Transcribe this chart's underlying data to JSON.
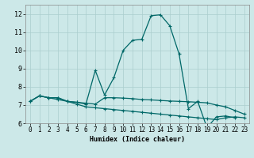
{
  "xlabel": "Humidex (Indice chaleur)",
  "bg_color": "#cce8e8",
  "grid_color": "#aacece",
  "line_color": "#006868",
  "xlim": [
    -0.5,
    23.5
  ],
  "ylim": [
    6,
    12.5
  ],
  "yticks": [
    6,
    7,
    8,
    9,
    10,
    11,
    12
  ],
  "xticks": [
    0,
    1,
    2,
    3,
    4,
    5,
    6,
    7,
    8,
    9,
    10,
    11,
    12,
    13,
    14,
    15,
    16,
    17,
    18,
    19,
    20,
    21,
    22,
    23
  ],
  "series1_x": [
    0,
    1,
    2,
    3,
    4,
    5,
    6,
    7,
    8,
    9,
    10,
    11,
    12,
    13,
    14,
    15,
    16,
    17,
    18,
    19,
    20,
    21,
    22
  ],
  "series1_y": [
    7.2,
    7.5,
    7.4,
    7.4,
    7.2,
    7.15,
    7.05,
    8.9,
    7.55,
    8.5,
    10.0,
    10.55,
    10.6,
    11.9,
    11.95,
    11.35,
    9.8,
    6.8,
    7.2,
    5.75,
    6.35,
    6.4,
    6.3
  ],
  "series2_x": [
    0,
    1,
    2,
    3,
    4,
    5,
    6,
    7,
    8,
    9,
    10,
    11,
    12,
    13,
    14,
    15,
    16,
    17,
    18,
    19,
    20,
    21,
    22,
    23
  ],
  "series2_y": [
    7.2,
    7.5,
    7.4,
    7.4,
    7.2,
    7.15,
    7.1,
    7.05,
    7.4,
    7.4,
    7.38,
    7.35,
    7.3,
    7.28,
    7.25,
    7.22,
    7.2,
    7.18,
    7.15,
    7.12,
    7.0,
    6.9,
    6.7,
    6.5
  ],
  "series3_x": [
    0,
    1,
    2,
    3,
    4,
    5,
    6,
    7,
    8,
    9,
    10,
    11,
    12,
    13,
    14,
    15,
    16,
    17,
    18,
    19,
    20,
    21,
    22,
    23
  ],
  "series3_y": [
    7.2,
    7.5,
    7.4,
    7.3,
    7.2,
    7.05,
    6.9,
    6.85,
    6.8,
    6.75,
    6.7,
    6.65,
    6.6,
    6.55,
    6.5,
    6.45,
    6.4,
    6.35,
    6.3,
    6.25,
    6.2,
    6.3,
    6.35,
    6.3
  ],
  "xlabel_fontsize": 6,
  "tick_fontsize": 5.5
}
